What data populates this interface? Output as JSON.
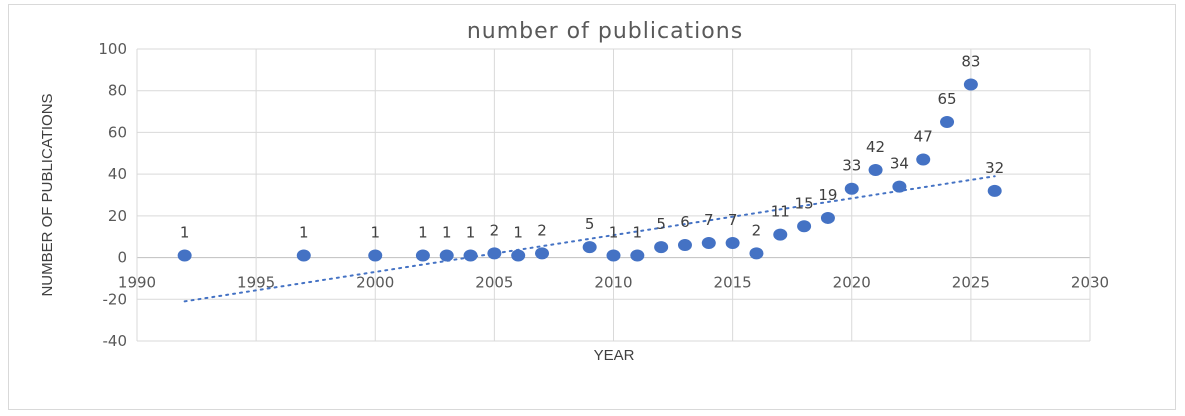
{
  "chart_data": {
    "type": "scatter",
    "title": "number of publications",
    "xlabel": "YEAR",
    "ylabel": "NUMBER OF PUBLICATIONS",
    "xlim": [
      1990,
      2030
    ],
    "ylim": [
      -40,
      100
    ],
    "x_ticks": [
      1990,
      1995,
      2000,
      2005,
      2010,
      2015,
      2020,
      2025,
      2030
    ],
    "y_ticks": [
      100,
      80,
      60,
      40,
      20,
      0,
      -20,
      -40
    ],
    "grid": "vertical and horizontal",
    "marker_color": "#4472c4",
    "trendline": {
      "type": "linear",
      "style": "dotted",
      "from": [
        1992,
        -21
      ],
      "to": [
        2026,
        39
      ]
    },
    "x": [
      1992,
      1997,
      2000,
      2002,
      2003,
      2004,
      2005,
      2006,
      2007,
      2009,
      2010,
      2011,
      2012,
      2013,
      2014,
      2015,
      2016,
      2017,
      2018,
      2019,
      2020,
      2021,
      2022,
      2023,
      2024,
      2025,
      2026
    ],
    "y": [
      1,
      1,
      1,
      1,
      1,
      1,
      2,
      1,
      2,
      5,
      1,
      1,
      5,
      6,
      7,
      7,
      2,
      11,
      15,
      19,
      33,
      42,
      34,
      47,
      65,
      83,
      32
    ],
    "data_labels": [
      "1",
      "1",
      "1",
      "1",
      "1",
      "1",
      "2",
      "1",
      "2",
      "5",
      "1",
      "1",
      "5",
      "6",
      "7",
      "7",
      "2",
      "11",
      "15",
      "19",
      "33",
      "42",
      "34",
      "47",
      "65",
      "83",
      "32"
    ]
  }
}
